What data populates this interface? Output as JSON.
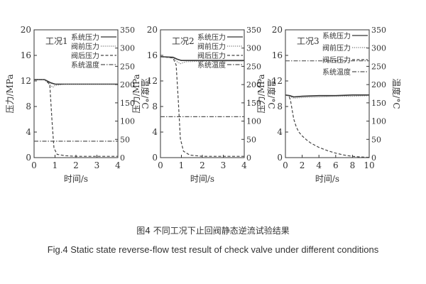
{
  "figure": {
    "caption_cn": "图4 不同工况下止回阀静态逆流试验结果",
    "caption_en": "Fig.4 Static state reverse-flow test result of check valve under different conditions"
  },
  "chart_data": [
    {
      "type": "line",
      "panel_label": "工况1",
      "xlabel": "时间/s",
      "ylabel": "压力/MPa",
      "y2label": "温度/°C",
      "xlim": [
        0,
        4
      ],
      "ylim": [
        0,
        20
      ],
      "y2lim": [
        0,
        350
      ],
      "x_ticks": [
        0,
        1,
        2,
        3,
        4
      ],
      "y_ticks": [
        0,
        4,
        8,
        12,
        16,
        20
      ],
      "y2_ticks": [
        0,
        50,
        100,
        150,
        200,
        250,
        300,
        350
      ],
      "legend_position": "top-right",
      "series": [
        {
          "name": "系统压力",
          "axis": "left",
          "style": "solid",
          "x": [
            0,
            0.5,
            0.8,
            1.0,
            1.5,
            2,
            3,
            4
          ],
          "y": [
            12.2,
            12.2,
            11.7,
            11.5,
            11.5,
            11.5,
            11.5,
            11.5
          ]
        },
        {
          "name": "阀前压力",
          "axis": "left",
          "style": "dotted",
          "x": [
            0,
            0.5,
            0.75,
            0.9,
            1.0,
            1.5,
            2,
            3,
            4
          ],
          "y": [
            12.2,
            12.2,
            11.4,
            11.0,
            11.3,
            11.5,
            11.5,
            11.5,
            11.5
          ]
        },
        {
          "name": "阀后压力",
          "axis": "left",
          "style": "dashed",
          "x": [
            0,
            0.5,
            0.75,
            0.85,
            0.95,
            1.1,
            1.5,
            2,
            3,
            4
          ],
          "y": [
            12.2,
            12.2,
            11.5,
            6.0,
            1.5,
            0.5,
            0.3,
            0.2,
            0.2,
            0.2
          ]
        },
        {
          "name": "系统温度",
          "axis": "right",
          "style": "dashdot",
          "x": [
            0,
            4
          ],
          "y": [
            45,
            45
          ]
        }
      ]
    },
    {
      "type": "line",
      "panel_label": "工况2",
      "xlabel": "时间/s",
      "ylabel": "压力/MPa",
      "y2label": "温度/°C",
      "xlim": [
        0,
        4
      ],
      "ylim": [
        0,
        20
      ],
      "y2lim": [
        0,
        350
      ],
      "x_ticks": [
        0,
        1,
        2,
        3,
        4
      ],
      "y_ticks": [
        0,
        4,
        8,
        12,
        16,
        20
      ],
      "y2_ticks": [
        0,
        50,
        100,
        150,
        200,
        250,
        300,
        350
      ],
      "legend_position": "top-right",
      "series": [
        {
          "name": "系统压力",
          "axis": "left",
          "style": "solid",
          "x": [
            0,
            0.6,
            0.8,
            1.0,
            1.5,
            2,
            3,
            4
          ],
          "y": [
            15.8,
            15.7,
            15.4,
            15.2,
            15.2,
            15.2,
            15.2,
            15.2
          ]
        },
        {
          "name": "阀前压力",
          "axis": "left",
          "style": "dotted",
          "x": [
            0,
            0.6,
            0.8,
            0.95,
            1.2,
            2,
            3,
            4
          ],
          "y": [
            15.8,
            15.6,
            15.0,
            14.7,
            15.0,
            15.1,
            15.1,
            15.1
          ]
        },
        {
          "name": "阀后压力",
          "axis": "left",
          "style": "dashed",
          "x": [
            0,
            0.6,
            0.75,
            0.85,
            0.95,
            1.1,
            1.4,
            2,
            3,
            4
          ],
          "y": [
            15.8,
            15.6,
            14.5,
            9.0,
            3.0,
            1.0,
            0.4,
            0.2,
            0.2,
            0.2
          ]
        },
        {
          "name": "系统温度",
          "axis": "right",
          "style": "dashdot",
          "x": [
            0,
            4
          ],
          "y": [
            112,
            112
          ]
        }
      ]
    },
    {
      "type": "line",
      "panel_label": "工况3",
      "xlabel": "时间/s",
      "ylabel": "压力/MPa",
      "y2label": "温度/°C",
      "xlim": [
        0,
        10
      ],
      "ylim": [
        0,
        20
      ],
      "y2lim": [
        0,
        350
      ],
      "x_ticks": [
        0,
        2,
        4,
        6,
        8,
        10
      ],
      "y_ticks": [
        0,
        4,
        8,
        12,
        16,
        20
      ],
      "y2_ticks": [
        0,
        50,
        100,
        150,
        200,
        250,
        300,
        350
      ],
      "legend_position": "top-right",
      "series": [
        {
          "name": "系统压力",
          "axis": "left",
          "style": "solid",
          "x": [
            0,
            0.5,
            1,
            2,
            4,
            6,
            8,
            10
          ],
          "y": [
            9.8,
            9.7,
            9.5,
            9.6,
            9.7,
            9.7,
            9.8,
            9.8
          ]
        },
        {
          "name": "阀前压力",
          "axis": "left",
          "style": "dotted",
          "x": [
            0,
            0.5,
            1,
            2,
            4,
            6,
            8,
            10
          ],
          "y": [
            9.8,
            9.6,
            9.3,
            9.4,
            9.5,
            9.6,
            9.6,
            9.7
          ]
        },
        {
          "name": "阀后压力",
          "axis": "left",
          "style": "dashed",
          "x": [
            0,
            0.4,
            0.6,
            0.8,
            1.0,
            1.3,
            1.6,
            2,
            2.5,
            3,
            4,
            5,
            6,
            7,
            8,
            9,
            10
          ],
          "y": [
            9.8,
            9.7,
            9.0,
            7.5,
            6.0,
            4.8,
            4.0,
            3.4,
            2.8,
            2.3,
            1.6,
            1.1,
            0.7,
            0.4,
            0.2,
            0.1,
            0.05
          ]
        },
        {
          "name": "系统温度",
          "axis": "right",
          "style": "dashdot",
          "x": [
            0,
            10
          ],
          "y": [
            265,
            265
          ]
        }
      ]
    }
  ]
}
